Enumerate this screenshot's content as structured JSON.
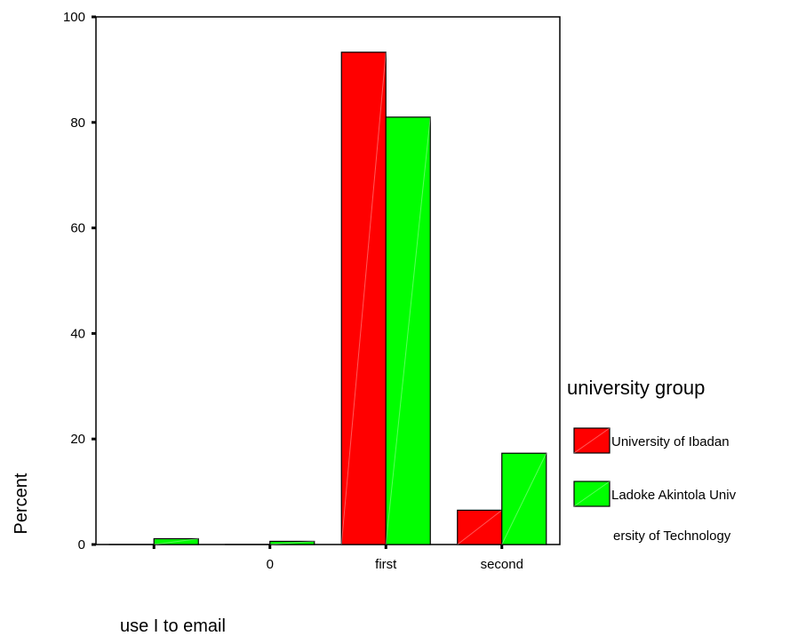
{
  "chart_data": {
    "type": "bar",
    "title": "",
    "xlabel": "use I to email",
    "ylabel": "Percent",
    "ylim": [
      0,
      100
    ],
    "yticks": [
      0,
      20,
      40,
      60,
      80,
      100
    ],
    "categories": [
      "",
      "0",
      "first",
      "second"
    ],
    "series": [
      {
        "name": "University of Ibadan",
        "color": "#ff0000",
        "values": [
          0,
          0,
          93.3,
          6.5
        ]
      },
      {
        "name": "Ladoke Akintola University of Technology",
        "color": "#00ff00",
        "values": [
          1.1,
          0.6,
          81.0,
          17.3
        ]
      }
    ],
    "legend": {
      "title": "university group",
      "placement": "right",
      "entries": [
        {
          "lines": [
            "University of Ibadan"
          ]
        },
        {
          "lines": [
            "Ladoke Akintola Univ",
            "ersity of Technology"
          ]
        }
      ]
    },
    "grid": false
  }
}
